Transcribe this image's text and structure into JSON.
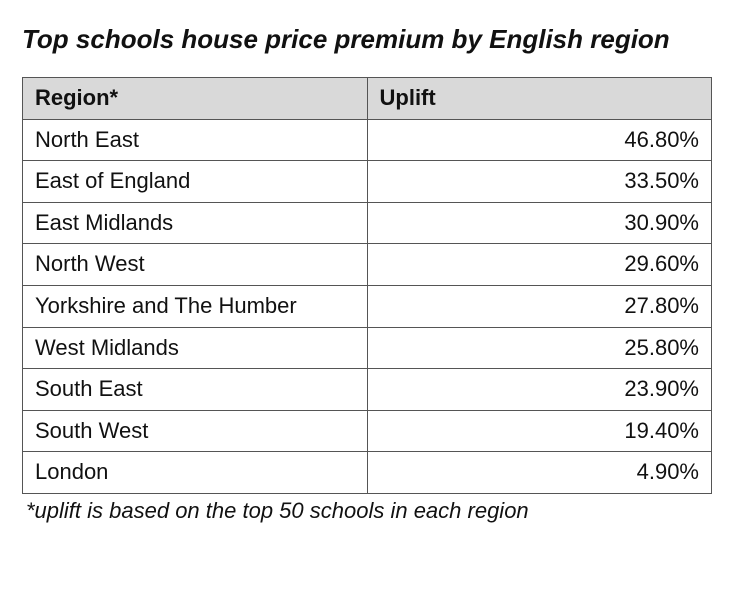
{
  "title": "Top schools house price premium by English region",
  "table": {
    "type": "table",
    "columns": [
      {
        "label": "Region*",
        "align": "left",
        "width_pct": 50
      },
      {
        "label": "Uplift",
        "align": "right",
        "width_pct": 50
      }
    ],
    "rows": [
      {
        "region": "North East",
        "uplift": "46.80%"
      },
      {
        "region": "East of England",
        "uplift": "33.50%"
      },
      {
        "region": "East Midlands",
        "uplift": "30.90%"
      },
      {
        "region": "North West",
        "uplift": "29.60%"
      },
      {
        "region": "Yorkshire and The Humber",
        "uplift": "27.80%"
      },
      {
        "region": "West Midlands",
        "uplift": "25.80%"
      },
      {
        "region": "South East",
        "uplift": "23.90%"
      },
      {
        "region": "South West",
        "uplift": "19.40%"
      },
      {
        "region": "London",
        "uplift": "4.90%"
      }
    ],
    "header_bg": "#d9d9d9",
    "border_color": "#555555",
    "font_size_pt": 16,
    "header_font_weight": 700
  },
  "footnote": "*uplift is based on the top 50 schools in each region"
}
